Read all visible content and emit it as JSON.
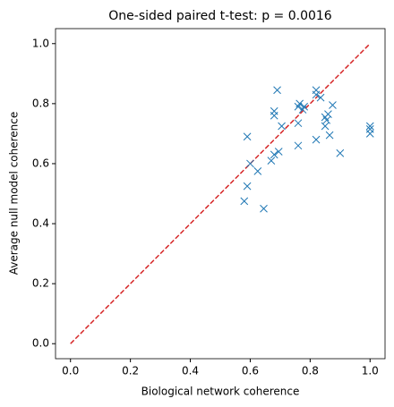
{
  "chart_data": {
    "type": "scatter",
    "title": "One-sided paired t-test: p = 0.0016",
    "xlabel": "Biological network coherence",
    "ylabel": "Average null model coherence",
    "xlim": [
      -0.05,
      1.05
    ],
    "ylim": [
      -0.05,
      1.05
    ],
    "xticks": [
      {
        "value": 0,
        "label": "0.0"
      },
      0.2,
      0.4,
      0.6,
      0.8,
      {
        "value": 1,
        "label": "1.0"
      }
    ],
    "yticks": [
      {
        "value": 0,
        "label": "0.0"
      },
      0.2,
      0.4,
      0.6,
      0.8,
      {
        "value": 1,
        "label": "1.0"
      }
    ],
    "series": [
      {
        "color": "#1f77b4",
        "marker": "x",
        "x": [
          0.58,
          0.645,
          0.59,
          0.59,
          0.6,
          0.625,
          0.67,
          0.68,
          0.695,
          0.68,
          0.68,
          0.69,
          0.705,
          0.76,
          0.76,
          0.76,
          0.765,
          0.775,
          0.78,
          0.82,
          0.82,
          0.82,
          0.835,
          0.85,
          0.85,
          0.855,
          0.86,
          0.865,
          0.875,
          0.9,
          1.0,
          1.0,
          1.0
        ],
        "values": [
          0.475,
          0.45,
          0.525,
          0.69,
          0.6,
          0.575,
          0.61,
          0.63,
          0.64,
          0.76,
          0.775,
          0.845,
          0.725,
          0.735,
          0.66,
          0.79,
          0.8,
          0.78,
          0.79,
          0.68,
          0.83,
          0.845,
          0.82,
          0.725,
          0.755,
          0.745,
          0.765,
          0.695,
          0.795,
          0.635,
          0.725,
          0.7,
          0.715
        ]
      }
    ],
    "diagonal": {
      "x": [
        0,
        1
      ],
      "y": [
        0,
        1
      ],
      "color": "#d62728",
      "style": "dashed"
    }
  }
}
